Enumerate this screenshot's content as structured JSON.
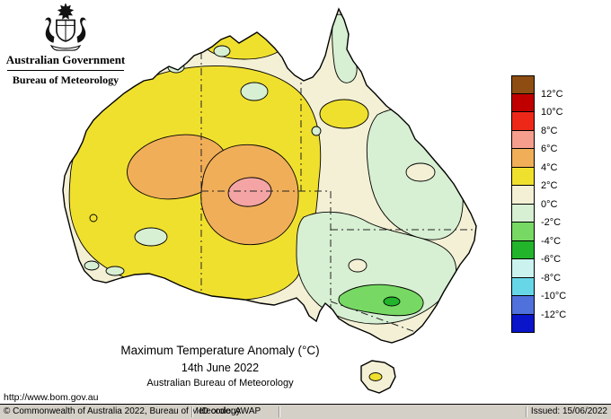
{
  "header": {
    "gov_title": "Australian Government",
    "agency": "Bureau of Meteorology",
    "crest_icon": "australian-coat-of-arms"
  },
  "map": {
    "region": "Australia",
    "colors": {
      "base_cream": "#F3F0D5",
      "yellow": "#F0E02E",
      "orange": "#F0AE58",
      "pink": "#F4A4A4",
      "pale_green": "#D7EFD2",
      "green": "#77D964",
      "dark_green": "#22B42A",
      "coast_line": "#000000",
      "ocean": "#FFFFFF"
    }
  },
  "legend": {
    "unit": "°C",
    "colors": [
      "#8E4D13",
      "#C00000",
      "#EE2819",
      "#F59E8E",
      "#F0AE58",
      "#F0E02E",
      "#F3F0D5",
      "#D7EFD2",
      "#77D964",
      "#22B42A",
      "#CBF2EE",
      "#67D7E8",
      "#5070DC",
      "#0A14C8"
    ],
    "labels": [
      "12°C",
      "10°C",
      "8°C",
      "6°C",
      "4°C",
      "2°C",
      "0°C",
      "-2°C",
      "-4°C",
      "-6°C",
      "-8°C",
      "-10°C",
      "-12°C"
    ]
  },
  "caption": {
    "title": "Maximum Temperature Anomaly (°C)",
    "date": "14th June 2022",
    "source": "Australian Bureau of Meteorology"
  },
  "links": {
    "bom_url": "http://www.bom.gov.au"
  },
  "footer": {
    "copyright": "© Commonwealth of Australia 2022, Bureau of Meteorology",
    "id_code": "ID code: AWAP",
    "issued": "Issued: 15/06/2022"
  }
}
